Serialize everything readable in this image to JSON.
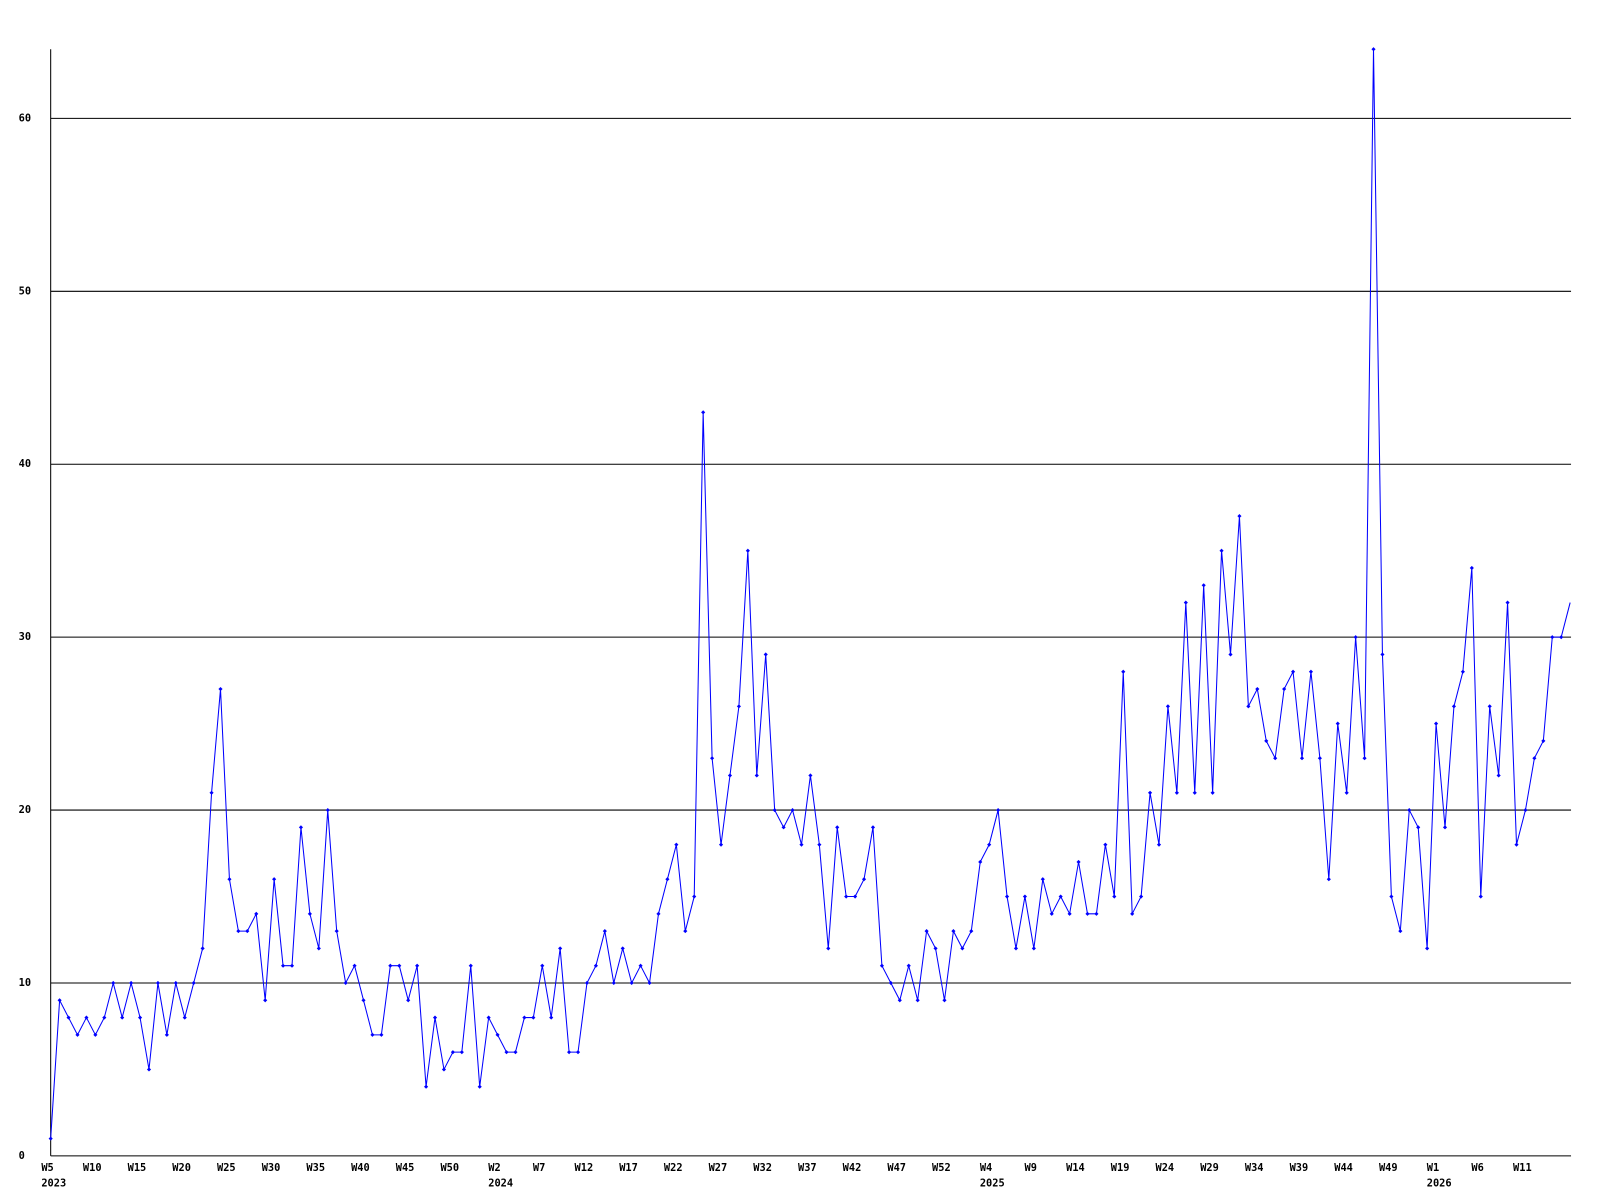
{
  "chart_data": {
    "type": "line",
    "categories": [
      "W5",
      null,
      null,
      null,
      null,
      "W10",
      null,
      null,
      null,
      null,
      "W15",
      null,
      null,
      null,
      null,
      "W20",
      null,
      null,
      null,
      null,
      "W25",
      null,
      null,
      null,
      null,
      "W30",
      null,
      null,
      null,
      null,
      "W35",
      null,
      null,
      null,
      null,
      "W40",
      null,
      null,
      null,
      null,
      "W45",
      null,
      null,
      null,
      null,
      "W50",
      null,
      null,
      null,
      null,
      "W2",
      null,
      null,
      null,
      null,
      "W7",
      null,
      null,
      null,
      null,
      "W12",
      null,
      null,
      null,
      null,
      "W17",
      null,
      null,
      null,
      null,
      "W22",
      null,
      null,
      null,
      null,
      "W27",
      null,
      null,
      null,
      null,
      "W32",
      null,
      null,
      null,
      null,
      "W37",
      null,
      null,
      null,
      null,
      "W42",
      null,
      null,
      null,
      null,
      "W47",
      null,
      null,
      null,
      null,
      "W52",
      null,
      null,
      null,
      null,
      "W4",
      null,
      null,
      null,
      null,
      "W9",
      null,
      null,
      null,
      null,
      "W14",
      null,
      null,
      null,
      null,
      "W19",
      null,
      null,
      null,
      null,
      "W24",
      null,
      null,
      null,
      null,
      "W29",
      null,
      null,
      null,
      null,
      "W34",
      null,
      null,
      null,
      null,
      "W39",
      null,
      null,
      null,
      null,
      "W44",
      null,
      null,
      null,
      null,
      "W49",
      null,
      null,
      null,
      null,
      "W1",
      null,
      null,
      null,
      null,
      "W6",
      null,
      null,
      null,
      null,
      "W11",
      null,
      null,
      null,
      null,
      null
    ],
    "year_labels": [
      "2023",
      null,
      null,
      null,
      null,
      null,
      null,
      null,
      null,
      null,
      null,
      null,
      null,
      null,
      null,
      null,
      null,
      null,
      null,
      null,
      null,
      null,
      null,
      null,
      null,
      null,
      null,
      null,
      null,
      null,
      null,
      null,
      null,
      null,
      null,
      null,
      null,
      null,
      null,
      null,
      null,
      null,
      null,
      null,
      null,
      null,
      null,
      null,
      null,
      null,
      "2024",
      null,
      null,
      null,
      null,
      null,
      null,
      null,
      null,
      null,
      null,
      null,
      null,
      null,
      null,
      null,
      null,
      null,
      null,
      null,
      null,
      null,
      null,
      null,
      null,
      null,
      null,
      null,
      null,
      null,
      null,
      null,
      null,
      null,
      null,
      null,
      null,
      null,
      null,
      null,
      null,
      null,
      null,
      null,
      null,
      null,
      null,
      null,
      null,
      null,
      null,
      null,
      null,
      null,
      null,
      "2025",
      null,
      null,
      null,
      null,
      null,
      null,
      null,
      null,
      null,
      null,
      null,
      null,
      null,
      null,
      null,
      null,
      null,
      null,
      null,
      null,
      null,
      null,
      null,
      null,
      null,
      null,
      null,
      null,
      null,
      null,
      null,
      null,
      null,
      null,
      null,
      null,
      null,
      null,
      null,
      null,
      null,
      null,
      null,
      null,
      null,
      null,
      null,
      null,
      null,
      "2026",
      null,
      null,
      null,
      null,
      null,
      null,
      null,
      null,
      null,
      null,
      null,
      null,
      null,
      null,
      null
    ],
    "series": [
      {
        "color": "#0000ff",
        "values": [
          1,
          9,
          8,
          7,
          8,
          7,
          8,
          10,
          8,
          10,
          8,
          5,
          10,
          7,
          10,
          8,
          10,
          12,
          21,
          27,
          16,
          13,
          13,
          14,
          9,
          16,
          11,
          11,
          19,
          14,
          12,
          20,
          13,
          10,
          11,
          9,
          7,
          7,
          11,
          11,
          9,
          11,
          4,
          8,
          5,
          6,
          6,
          11,
          4,
          8,
          7,
          6,
          6,
          8,
          8,
          11,
          8,
          12,
          6,
          6,
          10,
          11,
          13,
          10,
          12,
          10,
          11,
          10,
          14,
          16,
          18,
          13,
          15,
          43,
          23,
          18,
          22,
          26,
          35,
          22,
          29,
          20,
          19,
          20,
          18,
          22,
          18,
          12,
          19,
          15,
          15,
          16,
          19,
          11,
          10,
          9,
          11,
          9,
          13,
          12,
          9,
          13,
          12,
          13,
          17,
          18,
          20,
          15,
          12,
          15,
          12,
          16,
          14,
          15,
          14,
          17,
          14,
          14,
          18,
          15,
          28,
          14,
          15,
          21,
          18,
          26,
          21,
          32,
          21,
          33,
          21,
          35,
          29,
          37,
          26,
          27,
          24,
          23,
          27,
          28,
          23,
          28,
          23,
          16,
          25,
          21,
          30,
          23,
          64,
          29,
          15,
          13,
          20,
          19,
          12,
          25,
          19,
          26,
          28,
          34,
          15,
          26,
          22,
          32,
          18,
          20,
          23,
          24,
          30,
          30,
          32
        ]
      }
    ],
    "ylim": [
      0,
      64
    ],
    "yticks": [
      0,
      10,
      20,
      30,
      40,
      50,
      60
    ],
    "grid": true
  }
}
